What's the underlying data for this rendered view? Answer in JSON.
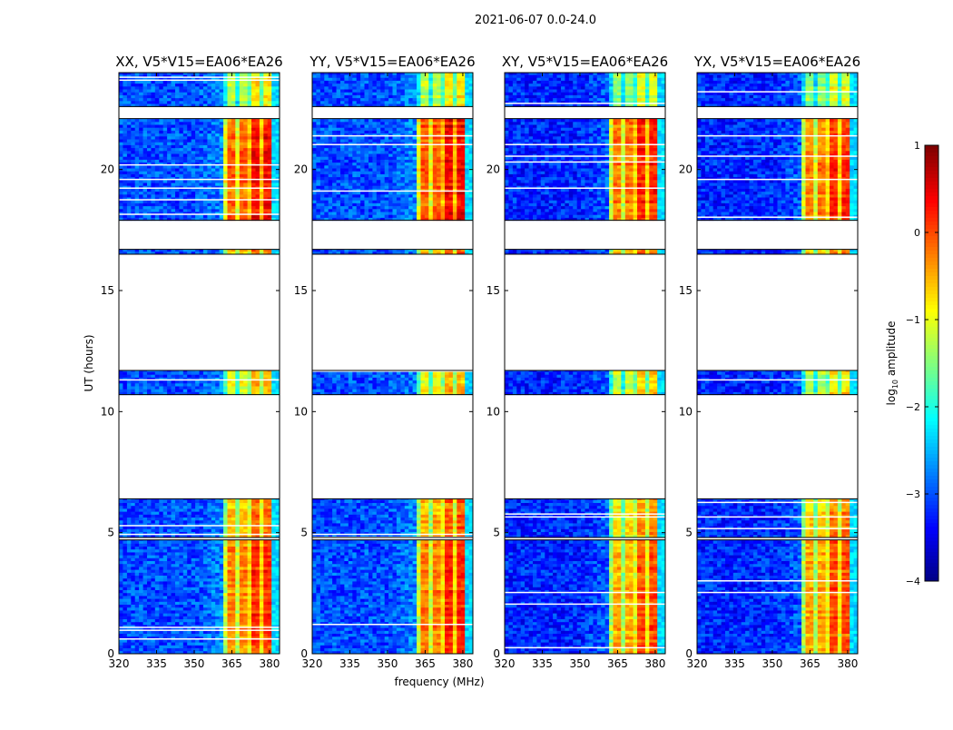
{
  "chart_data": {
    "type": "heatmap",
    "suptitle": "2021-06-07 0.0-24.0",
    "xlabel": "frequency (MHz)",
    "ylabel": "UT (hours)",
    "xlim": [
      320,
      384
    ],
    "ylim": [
      0,
      24
    ],
    "xticks": [
      "320",
      "335",
      "350",
      "365",
      "380"
    ],
    "xtick_values": [
      320,
      335,
      350,
      365,
      380
    ],
    "yticks": [
      "0",
      "5",
      "10",
      "15",
      "20"
    ],
    "ytick_values": [
      0,
      5,
      10,
      15,
      20
    ],
    "colorbar": {
      "label_main": "log",
      "label_sub": "10",
      "label_rest": " amplitude",
      "range": [
        -4,
        1
      ],
      "ticks": [
        "1",
        "0",
        "−1",
        "−2",
        "−3",
        "−4"
      ],
      "tick_values": [
        1,
        0,
        -1,
        -2,
        -3,
        -4
      ],
      "colormap": "jet"
    },
    "rfi_band_mhz": [
      361,
      380
    ],
    "time_segments_hours": [
      {
        "start": 0.0,
        "end": 4.7,
        "band_level": -0.3
      },
      {
        "start": 4.8,
        "end": 6.4,
        "band_level": -0.6
      },
      {
        "start": 10.7,
        "end": 11.7,
        "band_level": -1.0
      },
      {
        "start": 16.5,
        "end": 16.7,
        "band_level": -0.5
      },
      {
        "start": 17.9,
        "end": 22.1,
        "band_level": -0.1
      },
      {
        "start": 22.6,
        "end": 24.0,
        "band_level": -1.3
      }
    ],
    "panels": [
      {
        "title": "XX, V5*V15=EA06*EA26",
        "background_level": -3.0,
        "band_offset": 0.1
      },
      {
        "title": "YY, V5*V15=EA06*EA26",
        "background_level": -3.0,
        "band_offset": 0.15
      },
      {
        "title": "XY, V5*V15=EA06*EA26",
        "background_level": -3.2,
        "band_offset": -0.05
      },
      {
        "title": "YX, V5*V15=EA06*EA26",
        "background_level": -3.2,
        "band_offset": -0.05
      }
    ]
  }
}
